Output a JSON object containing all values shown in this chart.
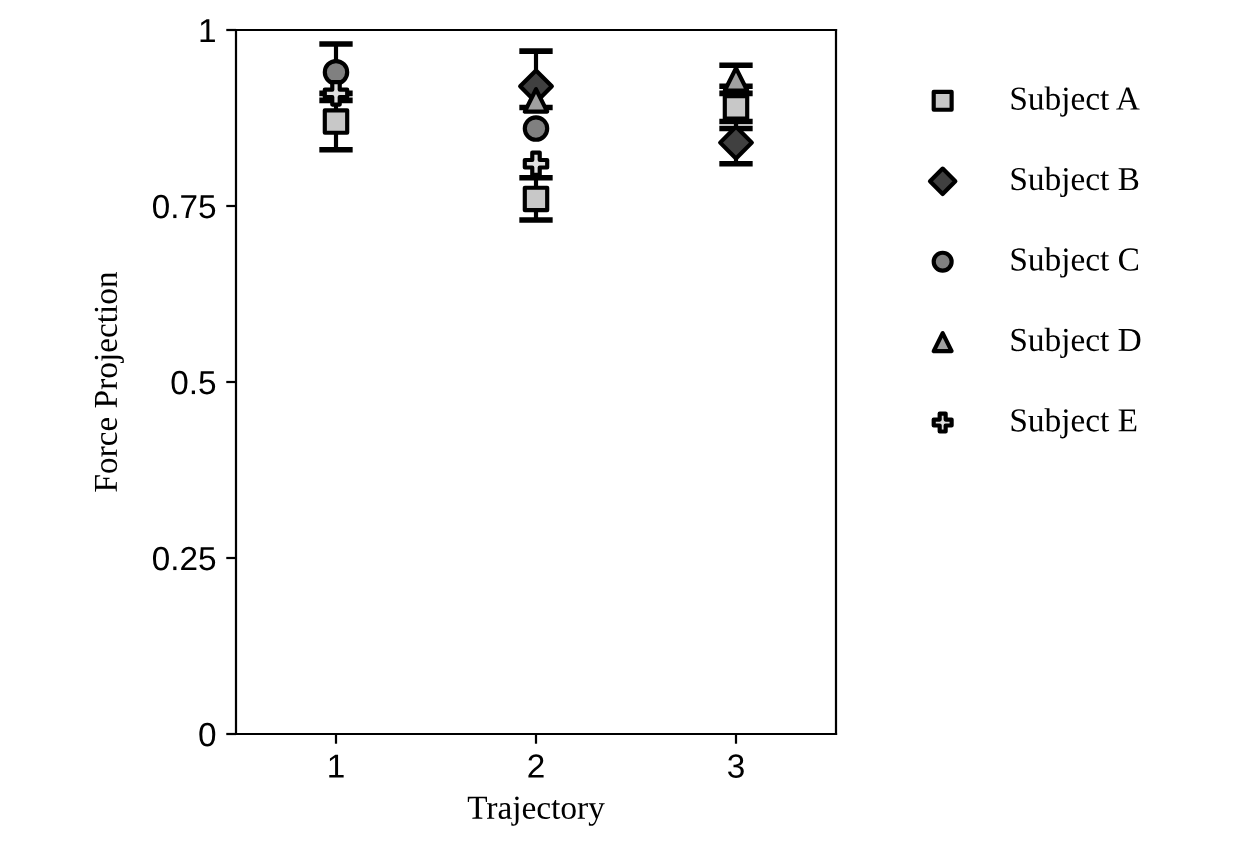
{
  "chart_data": {
    "type": "scatter",
    "xlabel": "Trajectory",
    "ylabel": "Force Projection",
    "x": [
      1,
      2,
      3
    ],
    "xlim": [
      0.5,
      3.5
    ],
    "xticks": [
      1,
      2,
      3
    ],
    "ylim": [
      0,
      1
    ],
    "yticks": [
      0,
      0.25,
      0.5,
      0.75,
      1
    ],
    "grid": false,
    "legend": "right",
    "series": [
      {
        "name": "Subject A",
        "color": "#c8c8c8",
        "marker": "square",
        "values": [
          0.87,
          0.76,
          0.89
        ],
        "errors": [
          [
            0.83,
            0.91
          ],
          [
            0.73,
            0.79
          ],
          [
            0.86,
            0.92
          ]
        ]
      },
      {
        "name": "Subject B",
        "color": "#404040",
        "marker": "diamond",
        "values": [
          null,
          0.92,
          0.84
        ],
        "errors": [
          null,
          [
            0.89,
            0.97
          ],
          [
            0.81,
            0.87
          ]
        ]
      },
      {
        "name": "Subject C",
        "color": "#808080",
        "marker": "circle",
        "values": [
          0.94,
          0.86,
          null
        ],
        "errors": [
          [
            0.9,
            0.98
          ],
          null,
          null
        ]
      },
      {
        "name": "Subject D",
        "color": "#a0a0a0",
        "marker": "triangle",
        "values": [
          null,
          0.9,
          0.93
        ],
        "errors": [
          null,
          null,
          [
            0.91,
            0.95
          ]
        ]
      },
      {
        "name": "Subject E",
        "color": "#e0e0e0",
        "marker": "cross",
        "values": [
          0.91,
          0.81,
          null
        ],
        "errors": [
          null,
          null,
          null
        ]
      }
    ]
  }
}
